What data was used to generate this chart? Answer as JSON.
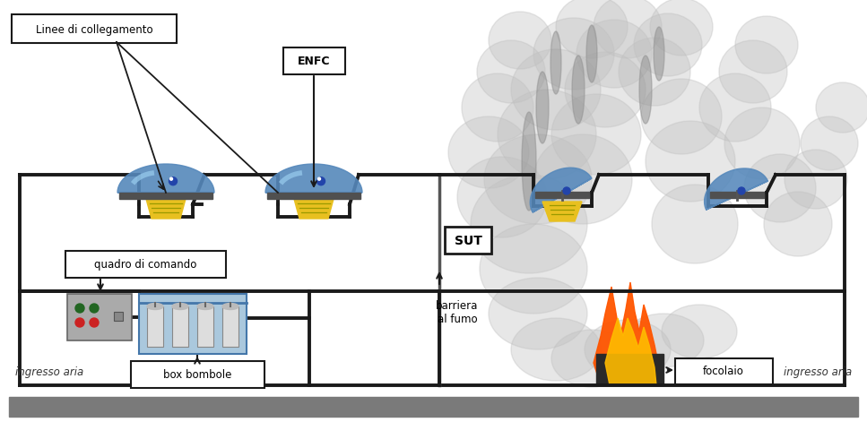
{
  "bg_color": "#ffffff",
  "floor_color": "#7a7a7a",
  "line_color": "#1a1a1a",
  "dome_body_color": "#5588bb",
  "dome_highlight": "#99ccee",
  "dome_base_color": "#555555",
  "yellow_vent_color": "#e8c020",
  "smoke_color": "#c0c0c0",
  "flame_orange": "#ff5500",
  "flame_yellow": "#ffbb00",
  "fire_base_color": "#2a2a2a",
  "control_panel_color": "#aaaaaa",
  "cylinder_box_color": "#aac8dd",
  "labels": {
    "linee": "Linee di collegamento",
    "enfc": "ENFC",
    "sut": "SUT",
    "quadro": "quadro di comando",
    "box_bombole": "box bombole",
    "barriera": "barriera\nal fumo",
    "focolaio": "focolaio",
    "ingresso_aria_left": "ingresso aria",
    "ingresso_aria_right": "ingresso aria"
  },
  "figsize": [
    9.67,
    4.71
  ],
  "dpi": 100
}
